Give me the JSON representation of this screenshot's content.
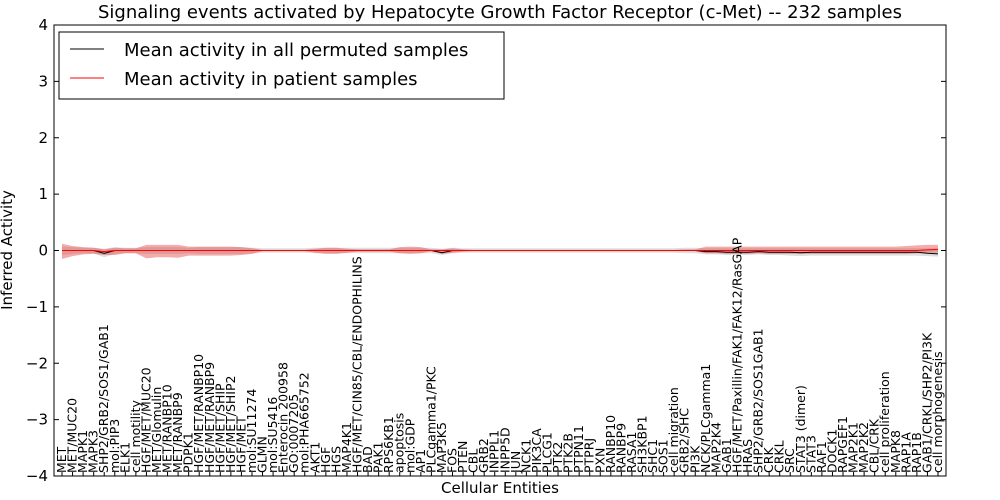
{
  "chart_data": {
    "type": "line",
    "title": "Signaling events activated by Hepatocyte Growth Factor Receptor (c-Met) -- 232 samples",
    "xlabel": "Cellular Entities",
    "ylabel": "Inferred Activity",
    "ylim": [
      -4,
      4
    ],
    "yticks": [
      -4,
      -3,
      -2,
      -1,
      0,
      1,
      2,
      3,
      4
    ],
    "ytick_labels": [
      "−4",
      "−3",
      "−2",
      "−1",
      "0",
      "1",
      "2",
      "3",
      "4"
    ],
    "legend_position": "top-left",
    "categories": [
      "MET",
      "MET/MUC20",
      "MAPK1",
      "MAPK3",
      "SHP2/GRB2/SOS1/GAB1",
      "mol:PIP3",
      "ELK1",
      "cell motility",
      "HGF/MET/MUC20",
      "MET/Glomulin",
      "MET/RANBP10",
      "MET/RANBP9",
      "PDPK1",
      "HGF/MET/RANBP10",
      "HGF/MET/RANBP9",
      "HGF/MET/SHIP",
      "HGF/MET/SHIP2",
      "HGF/MET",
      "mol:SU11274",
      "GLMN",
      "mol:SU5416",
      "Enterocin 200958",
      "GO:0007205",
      "mol:PHA665752",
      "AKT1",
      "HGF",
      "HGS",
      "MAP4K1",
      "HGF/MET/CIN85/CBL/ENDOPHILINS",
      "BAD",
      "PAK1",
      "RPS6KB1",
      "apoptosis",
      "mol:GDP",
      "AP1",
      "PLCgamma1/PKC",
      "MAP3K5",
      "FOS",
      "PTEN",
      "CBL",
      "GRB2",
      "INPPL1",
      "INPP5D",
      "JUN",
      "NCK1",
      "PIK3CA",
      "PLCG1",
      "PTK2",
      "PTK2B",
      "PTPN11",
      "PTPRJ",
      "PXN",
      "RANBP10",
      "RANBP9",
      "RASA1",
      "SH3KBP1",
      "SHC1",
      "SOS1",
      "cell migration",
      "GRB2/SHC",
      "PI3K",
      "NCK/PLCgamma1",
      "MAP2K4",
      "GAB1",
      "HGF/MET/Paxillin/FAK1/FAK12/RasGAP",
      "HRAS",
      "SHP2/GRB2/SOS1GAB1",
      "CRK",
      "CRKL",
      "SRC",
      "STAT3 (dimer)",
      "STAT3",
      "RAF1",
      "DOCK1",
      "RAPGEF1",
      "MAP2K1",
      "MAP2K2",
      "CBL/CRK",
      "cell proliferation",
      "MAPK8",
      "RAP1A",
      "RAP1B",
      "GAB1/CRKL/SHP2/PI3K",
      "cell morphogenesis"
    ],
    "series": [
      {
        "name": "Mean activity in all permuted samples",
        "color": "#000000",
        "values": [
          0.0,
          0.0,
          0.0,
          0.0,
          -0.05,
          0.0,
          0.0,
          0.0,
          0.0,
          0.0,
          0.0,
          0.0,
          0.0,
          0.0,
          0.0,
          0.0,
          0.0,
          0.0,
          0.0,
          0.0,
          0.0,
          0.0,
          0.0,
          0.0,
          0.0,
          0.0,
          0.0,
          0.0,
          0.0,
          0.0,
          0.0,
          0.0,
          0.0,
          0.0,
          0.0,
          0.0,
          -0.04,
          0.0,
          0.0,
          0.0,
          0.0,
          0.0,
          0.0,
          0.0,
          0.0,
          0.0,
          0.0,
          0.0,
          0.0,
          0.0,
          0.0,
          0.0,
          0.0,
          0.0,
          0.0,
          0.0,
          0.0,
          0.0,
          0.0,
          0.0,
          0.0,
          -0.02,
          -0.02,
          -0.03,
          -0.03,
          -0.03,
          -0.02,
          -0.03,
          -0.03,
          -0.03,
          -0.04,
          -0.03,
          -0.03,
          -0.03,
          -0.03,
          -0.03,
          -0.03,
          -0.03,
          -0.03,
          -0.03,
          -0.03,
          -0.03,
          -0.05,
          -0.06
        ],
        "band_low": [
          -0.08,
          -0.06,
          -0.05,
          -0.05,
          -0.12,
          -0.06,
          -0.05,
          -0.05,
          -0.06,
          -0.06,
          -0.06,
          -0.06,
          -0.05,
          -0.06,
          -0.06,
          -0.06,
          -0.06,
          -0.06,
          -0.05,
          -0.04,
          -0.04,
          -0.04,
          -0.04,
          -0.04,
          -0.05,
          -0.05,
          -0.05,
          -0.05,
          -0.05,
          -0.05,
          -0.05,
          -0.05,
          -0.05,
          -0.05,
          -0.05,
          -0.05,
          -0.08,
          -0.05,
          -0.04,
          -0.04,
          -0.04,
          -0.04,
          -0.04,
          -0.04,
          -0.04,
          -0.04,
          -0.04,
          -0.04,
          -0.04,
          -0.04,
          -0.04,
          -0.04,
          -0.04,
          -0.04,
          -0.04,
          -0.04,
          -0.04,
          -0.04,
          -0.04,
          -0.05,
          -0.05,
          -0.07,
          -0.07,
          -0.08,
          -0.08,
          -0.08,
          -0.07,
          -0.08,
          -0.08,
          -0.09,
          -0.1,
          -0.09,
          -0.09,
          -0.09,
          -0.09,
          -0.09,
          -0.09,
          -0.09,
          -0.09,
          -0.09,
          -0.09,
          -0.09,
          -0.1,
          -0.11
        ],
        "band_high": [
          0.07,
          0.06,
          0.05,
          0.05,
          0.03,
          0.06,
          0.05,
          0.05,
          0.06,
          0.06,
          0.06,
          0.06,
          0.05,
          0.06,
          0.06,
          0.06,
          0.06,
          0.06,
          0.05,
          0.04,
          0.04,
          0.04,
          0.04,
          0.04,
          0.05,
          0.05,
          0.05,
          0.05,
          0.05,
          0.05,
          0.05,
          0.05,
          0.05,
          0.05,
          0.05,
          0.05,
          0.03,
          0.05,
          0.04,
          0.04,
          0.04,
          0.04,
          0.04,
          0.04,
          0.04,
          0.04,
          0.04,
          0.04,
          0.04,
          0.04,
          0.04,
          0.04,
          0.04,
          0.04,
          0.04,
          0.04,
          0.04,
          0.04,
          0.04,
          0.05,
          0.05,
          0.04,
          0.04,
          0.04,
          0.04,
          0.04,
          0.04,
          0.04,
          0.04,
          0.04,
          0.04,
          0.04,
          0.04,
          0.04,
          0.04,
          0.04,
          0.04,
          0.04,
          0.04,
          0.04,
          0.04,
          0.04,
          0.04,
          0.04
        ]
      },
      {
        "name": "Mean activity in patient samples",
        "color": "#ff0000",
        "values": [
          0.0,
          0.0,
          0.0,
          0.0,
          -0.02,
          0.0,
          0.0,
          0.0,
          0.0,
          0.0,
          0.0,
          0.0,
          0.0,
          0.0,
          0.0,
          0.0,
          0.0,
          0.0,
          0.0,
          0.0,
          0.0,
          0.0,
          0.0,
          0.0,
          0.0,
          0.0,
          0.0,
          0.0,
          0.0,
          0.0,
          0.0,
          0.0,
          0.0,
          0.0,
          0.0,
          0.0,
          0.0,
          0.0,
          0.0,
          0.0,
          0.0,
          0.0,
          0.0,
          0.0,
          0.0,
          0.0,
          0.0,
          0.0,
          0.0,
          0.0,
          0.0,
          0.0,
          0.0,
          0.0,
          0.0,
          0.0,
          0.0,
          0.0,
          0.0,
          0.0,
          0.0,
          0.0,
          0.0,
          0.0,
          0.0,
          0.0,
          0.0,
          0.0,
          0.0,
          0.0,
          0.0,
          0.0,
          0.0,
          0.0,
          0.0,
          0.0,
          0.0,
          0.0,
          0.0,
          0.0,
          0.0,
          0.0,
          0.01,
          0.02
        ],
        "band_low": [
          -0.15,
          -0.1,
          -0.07,
          -0.06,
          -0.08,
          -0.08,
          -0.05,
          -0.05,
          -0.14,
          -0.12,
          -0.12,
          -0.13,
          -0.09,
          -0.09,
          -0.09,
          -0.09,
          -0.09,
          -0.08,
          -0.06,
          -0.01,
          -0.01,
          -0.01,
          -0.01,
          -0.01,
          -0.04,
          -0.06,
          -0.06,
          -0.04,
          -0.02,
          -0.02,
          -0.02,
          -0.02,
          -0.05,
          -0.06,
          -0.05,
          -0.01,
          -0.06,
          -0.04,
          -0.02,
          -0.01,
          -0.01,
          -0.01,
          -0.01,
          -0.01,
          -0.01,
          -0.01,
          -0.01,
          -0.01,
          -0.01,
          -0.01,
          -0.01,
          -0.01,
          -0.01,
          -0.01,
          -0.01,
          -0.01,
          -0.01,
          -0.01,
          -0.01,
          -0.01,
          -0.01,
          -0.05,
          -0.05,
          -0.06,
          -0.06,
          -0.06,
          -0.05,
          -0.06,
          -0.06,
          -0.06,
          -0.06,
          -0.06,
          -0.06,
          -0.06,
          -0.06,
          -0.06,
          -0.06,
          -0.06,
          -0.06,
          -0.06,
          -0.06,
          -0.05,
          -0.04,
          -0.04
        ],
        "band_high": [
          0.12,
          0.08,
          0.06,
          0.05,
          0.02,
          0.05,
          0.04,
          0.04,
          0.1,
          0.1,
          0.1,
          0.1,
          0.07,
          0.07,
          0.07,
          0.07,
          0.07,
          0.06,
          0.04,
          0.01,
          0.01,
          0.01,
          0.01,
          0.01,
          0.03,
          0.05,
          0.05,
          0.03,
          0.02,
          0.02,
          0.02,
          0.02,
          0.06,
          0.07,
          0.06,
          0.02,
          0.02,
          0.04,
          0.02,
          0.01,
          0.01,
          0.01,
          0.01,
          0.01,
          0.01,
          0.01,
          0.01,
          0.01,
          0.01,
          0.01,
          0.01,
          0.01,
          0.01,
          0.01,
          0.01,
          0.01,
          0.01,
          0.01,
          0.01,
          0.02,
          0.02,
          0.07,
          0.07,
          0.07,
          0.07,
          0.07,
          0.07,
          0.07,
          0.07,
          0.07,
          0.07,
          0.07,
          0.07,
          0.07,
          0.07,
          0.07,
          0.07,
          0.07,
          0.07,
          0.07,
          0.08,
          0.09,
          0.1,
          0.1
        ]
      }
    ]
  }
}
